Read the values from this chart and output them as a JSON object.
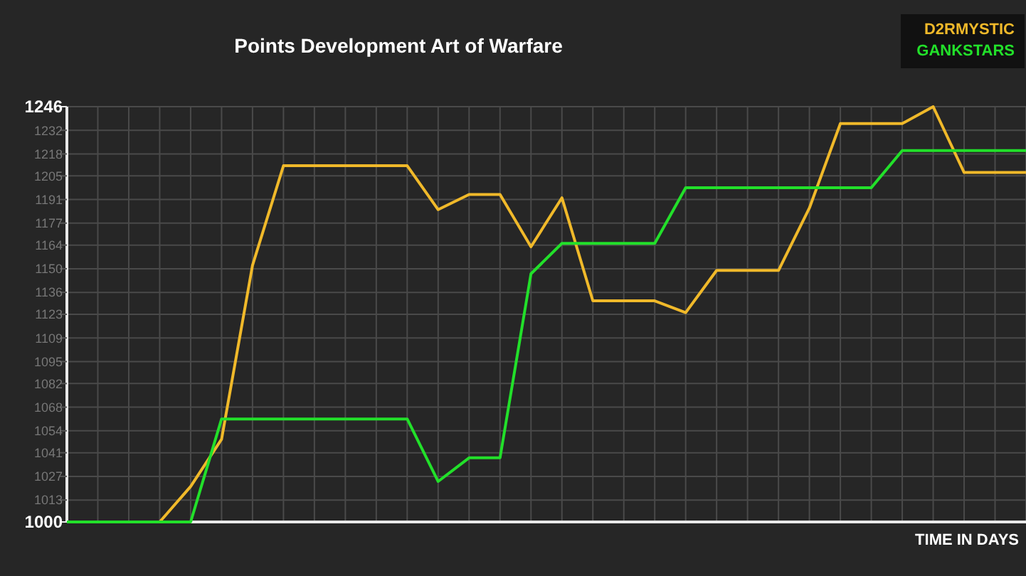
{
  "chart_data": {
    "type": "line",
    "title": "Points Development Art of Warfare",
    "xlabel": "TIME IN DAYS",
    "categories": [
      null,
      null,
      null,
      null,
      null,
      null,
      null,
      null,
      null,
      null,
      null,
      null,
      null,
      null,
      null,
      null,
      null,
      null,
      null,
      null,
      null,
      null,
      null,
      null,
      null,
      null,
      null,
      null,
      null,
      null,
      null,
      null
    ],
    "series": [
      {
        "name": "D2RMYSTIC",
        "color": "#f0b92a",
        "values": [
          null,
          null,
          null,
          1000,
          1021,
          1049,
          1152,
          1211,
          1211,
          1211,
          1211,
          1211,
          1185,
          1194,
          1194,
          1163,
          1192,
          1131,
          1131,
          1131,
          1124,
          1149,
          1149,
          1149,
          1186,
          1236,
          1236,
          1236,
          1246,
          1207,
          1207,
          1207
        ]
      },
      {
        "name": "GANKSTARS",
        "color": "#22e02a",
        "values": [
          1000,
          1000,
          1000,
          1000,
          1000,
          1061,
          1061,
          1061,
          1061,
          1061,
          1061,
          1061,
          1024,
          1038,
          1038,
          1147,
          1165,
          1165,
          1165,
          1165,
          1198,
          1198,
          1198,
          1198,
          1198,
          1198,
          1198,
          1220,
          1220,
          1220,
          1220,
          1220
        ]
      }
    ],
    "ylim": [
      1000,
      1246
    ],
    "yticks": [
      1000,
      1013,
      1027,
      1041,
      1054,
      1068,
      1082,
      1095,
      1109,
      1123,
      1136,
      1150,
      1164,
      1177,
      1191,
      1205,
      1218,
      1232,
      1246
    ],
    "grid": true,
    "legend": "top right",
    "marker": "none",
    "line_style": "solid"
  }
}
